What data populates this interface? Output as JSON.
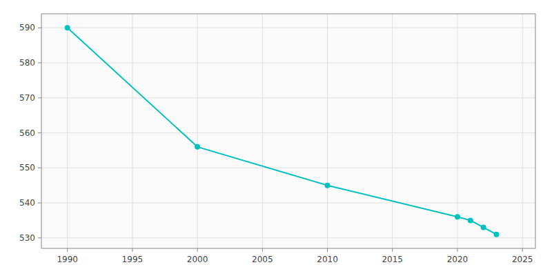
{
  "chart_data": {
    "type": "line",
    "x": [
      1990,
      2000,
      2010,
      2020,
      2021,
      2022,
      2023
    ],
    "values": [
      590,
      556,
      545,
      536,
      535,
      533,
      531
    ],
    "color": "#00C0C0",
    "marker": "circle",
    "xlim": [
      1988,
      2026
    ],
    "ylim": [
      527,
      594
    ],
    "xticks": [
      1990,
      1995,
      2000,
      2005,
      2010,
      2015,
      2020,
      2025
    ],
    "yticks": [
      530,
      540,
      550,
      560,
      570,
      580,
      590
    ],
    "grid": true
  }
}
